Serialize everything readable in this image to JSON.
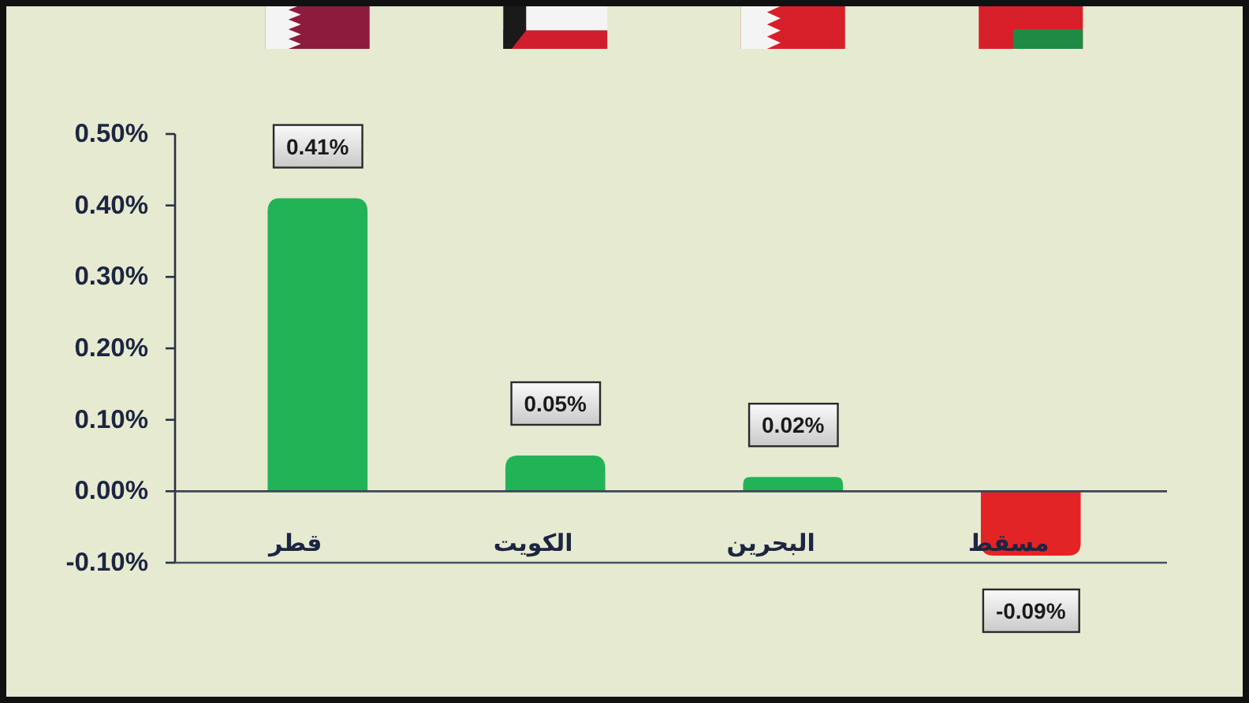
{
  "chart_data": {
    "type": "bar",
    "categories": [
      "قطر",
      "الكويت",
      "البحرين",
      "مسقط"
    ],
    "values": [
      0.41,
      0.05,
      0.02,
      -0.09
    ],
    "colors": [
      "#22b357",
      "#22b357",
      "#22b357",
      "#e32424"
    ],
    "value_labels": [
      "0.41%",
      "0.05%",
      "0.02%",
      "-0.09%"
    ],
    "ylim": [
      -0.1,
      0.5
    ],
    "yticks": [
      {
        "value": -0.1,
        "label": "-0.10%"
      },
      {
        "value": 0,
        "label": "0.00%"
      },
      {
        "value": 0.1,
        "label": "0.10%"
      },
      {
        "value": 0.2,
        "label": "0.20%"
      },
      {
        "value": 0.3,
        "label": "0.30%"
      },
      {
        "value": 0.4,
        "label": "0.40%"
      },
      {
        "value": 0.5,
        "label": "0.50%"
      }
    ]
  }
}
